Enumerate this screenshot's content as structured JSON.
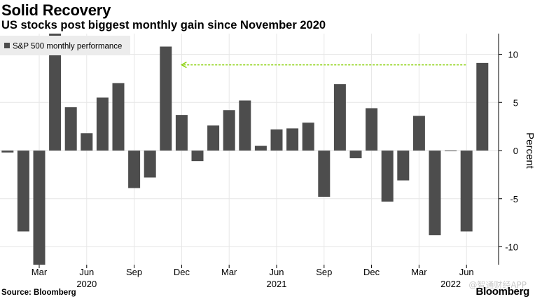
{
  "header": {
    "title": "Solid Recovery",
    "subtitle": "US stocks post biggest monthly gain since November 2020"
  },
  "footer": {
    "source": "Source: Bloomberg",
    "brand": "Bloomberg",
    "watermark": "@智通财经APP"
  },
  "colors": {
    "bar": "#4d4d4d",
    "arrow": "#8bd10f",
    "grid": "#e6e6e6",
    "text": "#000000"
  },
  "chart_data": {
    "type": "bar",
    "title": "Solid Recovery",
    "subtitle": "US stocks post biggest monthly gain since November 2020",
    "legend": {
      "label": "S&P 500 monthly performance",
      "position": "top-left"
    },
    "ylabel": "Percent",
    "ylim": [
      -12,
      12
    ],
    "yticks": [
      10,
      5,
      0,
      -5,
      -10
    ],
    "ytick_labels": [
      "10",
      "5",
      "0",
      "-5",
      "-10"
    ],
    "categories": [
      "2020-01",
      "2020-02",
      "2020-03",
      "2020-04",
      "2020-05",
      "2020-06",
      "2020-07",
      "2020-08",
      "2020-09",
      "2020-10",
      "2020-11",
      "2020-12",
      "2021-01",
      "2021-02",
      "2021-03",
      "2021-04",
      "2021-05",
      "2021-06",
      "2021-07",
      "2021-08",
      "2021-09",
      "2021-10",
      "2021-11",
      "2021-12",
      "2022-01",
      "2022-02",
      "2022-03",
      "2022-04",
      "2022-05",
      "2022-06",
      "2022-07"
    ],
    "values": [
      -0.2,
      -8.4,
      -12.5,
      12.7,
      4.5,
      1.8,
      5.5,
      7.0,
      -3.9,
      -2.8,
      10.8,
      3.7,
      -1.1,
      2.6,
      4.2,
      5.2,
      0.5,
      2.2,
      2.3,
      2.9,
      -4.8,
      6.9,
      -0.8,
      4.4,
      -5.3,
      -3.1,
      3.6,
      -8.8,
      0.0,
      -8.4,
      9.1
    ],
    "xticks": [
      {
        "index": 2,
        "label": "Mar"
      },
      {
        "index": 5,
        "label": "Jun"
      },
      {
        "index": 8,
        "label": "Sep"
      },
      {
        "index": 11,
        "label": "Dec"
      },
      {
        "index": 14,
        "label": "Mar"
      },
      {
        "index": 17,
        "label": "Jun"
      },
      {
        "index": 20,
        "label": "Sep"
      },
      {
        "index": 23,
        "label": "Dec"
      },
      {
        "index": 26,
        "label": "Mar"
      },
      {
        "index": 29,
        "label": "Jun"
      }
    ],
    "year_labels": [
      {
        "index": 5,
        "label": "2020"
      },
      {
        "index": 17,
        "label": "2021"
      },
      {
        "index": 28,
        "label": "2022"
      }
    ],
    "annotation": {
      "type": "arrow",
      "from_index": 29,
      "to_index": 11,
      "value": 8.9
    }
  }
}
